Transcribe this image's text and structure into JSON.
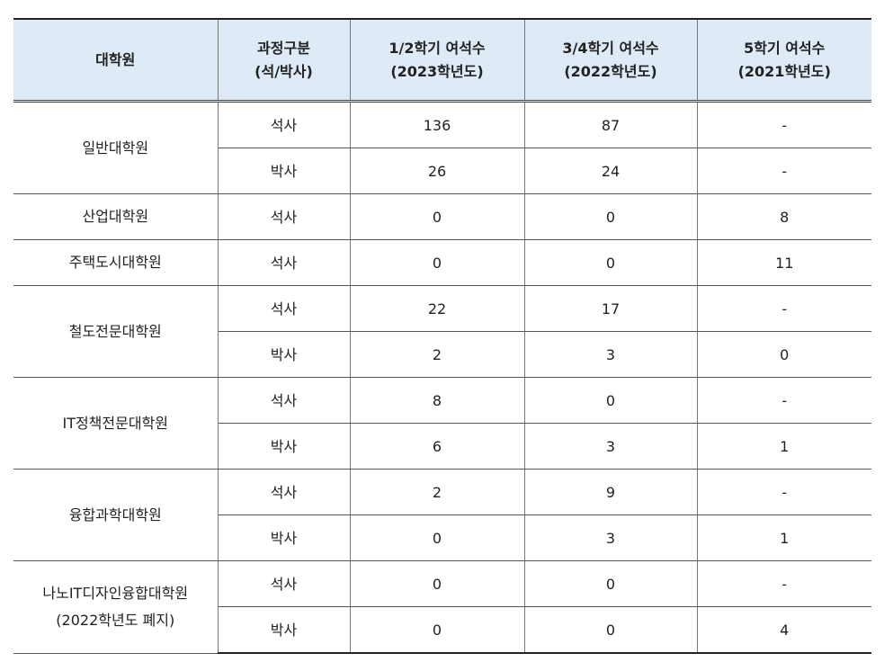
{
  "headers": {
    "school": "대학원",
    "course_line1": "과정구분",
    "course_line2": "(석/박사)",
    "sem12_line1": "1/2학기 여석수",
    "sem12_line2": "(2023학년도)",
    "sem34_line1": "3/4학기 여석수",
    "sem34_line2": "(2022학년도)",
    "sem5_line1": "5학기 여석수",
    "sem5_line2": "(2021학년도)"
  },
  "groups": [
    {
      "name": "일반대학원",
      "name2": "",
      "rows": [
        {
          "degree": "석사",
          "s12": "136",
          "s34": "87",
          "s5": "-"
        },
        {
          "degree": "박사",
          "s12": "26",
          "s34": "24",
          "s5": "-"
        }
      ]
    },
    {
      "name": "산업대학원",
      "name2": "",
      "rows": [
        {
          "degree": "석사",
          "s12": "0",
          "s34": "0",
          "s5": "8"
        }
      ]
    },
    {
      "name": "주택도시대학원",
      "name2": "",
      "rows": [
        {
          "degree": "석사",
          "s12": "0",
          "s34": "0",
          "s5": "11"
        }
      ]
    },
    {
      "name": "철도전문대학원",
      "name2": "",
      "rows": [
        {
          "degree": "석사",
          "s12": "22",
          "s34": "17",
          "s5": "-"
        },
        {
          "degree": "박사",
          "s12": "2",
          "s34": "3",
          "s5": "0"
        }
      ]
    },
    {
      "name": "IT정책전문대학원",
      "name2": "",
      "rows": [
        {
          "degree": "석사",
          "s12": "8",
          "s34": "0",
          "s5": "-"
        },
        {
          "degree": "박사",
          "s12": "6",
          "s34": "3",
          "s5": "1"
        }
      ]
    },
    {
      "name": "융합과학대학원",
      "name2": "",
      "rows": [
        {
          "degree": "석사",
          "s12": "2",
          "s34": "9",
          "s5": "-"
        },
        {
          "degree": "박사",
          "s12": "0",
          "s34": "3",
          "s5": "1"
        }
      ]
    },
    {
      "name": "나노IT디자인융합대학원",
      "name2": "(2022학년도 폐지)",
      "rows": [
        {
          "degree": "석사",
          "s12": "0",
          "s34": "0",
          "s5": "-"
        },
        {
          "degree": "박사",
          "s12": "0",
          "s34": "0",
          "s5": "4"
        }
      ]
    }
  ]
}
